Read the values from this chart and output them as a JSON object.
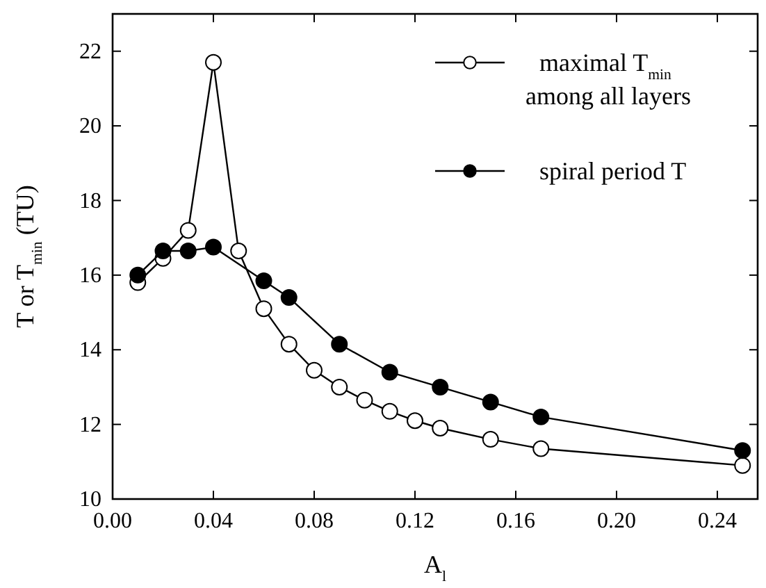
{
  "chart_data": {
    "type": "line",
    "xlabel": "A$_{l}$",
    "ylabel": "T or T$_{min}$ (TU)",
    "xlim": [
      0,
      0.256
    ],
    "ylim": [
      10,
      23
    ],
    "xticks": [
      {
        "value": 0,
        "label": "0.00"
      },
      {
        "value": 0.04,
        "label": "0.04"
      },
      {
        "value": 0.08,
        "label": "0.08"
      },
      {
        "value": 0.12,
        "label": "0.12"
      },
      {
        "value": 0.16,
        "label": "0.16"
      },
      {
        "value": 0.2,
        "label": "0.20"
      },
      {
        "value": 0.24,
        "label": "0.24"
      }
    ],
    "yticks": [
      10,
      12,
      14,
      16,
      18,
      20,
      22
    ],
    "marker": "circle",
    "legend": "top right",
    "series": [
      {
        "name": "maximal T$_{min}$ among all layers",
        "color": "#000000",
        "x": [
          0.01,
          0.02,
          0.03,
          0.04,
          0.05,
          0.06,
          0.07,
          0.08,
          0.09,
          0.1,
          0.11,
          0.12,
          0.13,
          0.15,
          0.17,
          0.25
        ],
        "values": [
          15.8,
          16.45,
          17.2,
          21.7,
          16.65,
          15.1,
          14.15,
          13.45,
          13.0,
          12.65,
          12.35,
          12.1,
          11.9,
          11.6,
          11.35,
          10.9
        ]
      },
      {
        "name": "spiral period T",
        "color": "#000000",
        "x": [
          0.01,
          0.02,
          0.03,
          0.04,
          0.06,
          0.07,
          0.09,
          0.11,
          0.13,
          0.15,
          0.17,
          0.25
        ],
        "values": [
          16.0,
          16.65,
          16.65,
          16.75,
          15.85,
          15.4,
          14.15,
          13.4,
          13.0,
          12.6,
          12.2,
          11.3
        ]
      }
    ]
  }
}
